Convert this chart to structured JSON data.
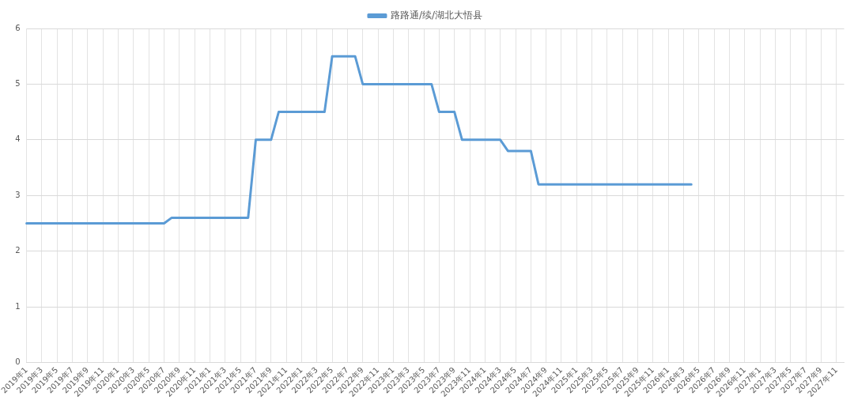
{
  "chart_data": {
    "type": "line",
    "categories": [
      "2019年1",
      null,
      "2019年3",
      null,
      "2019年5",
      null,
      "2019年7",
      null,
      "2019年9",
      null,
      "2019年11",
      null,
      "2020年1",
      null,
      "2020年3",
      null,
      "2020年5",
      null,
      "2020年7",
      null,
      "2020年9",
      null,
      "2020年11",
      null,
      "2021年1",
      null,
      "2021年3",
      null,
      "2021年5",
      null,
      "2021年7",
      null,
      "2021年9",
      null,
      "2021年11",
      null,
      "2022年1",
      null,
      "2022年3",
      null,
      "2022年5",
      null,
      "2022年7",
      null,
      "2022年9",
      null,
      "2022年11",
      null,
      "2023年1",
      null,
      "2023年3",
      null,
      "2023年5",
      null,
      "2023年7",
      null,
      "2023年9",
      null,
      "2023年11",
      null,
      "2024年1",
      null,
      "2024年3",
      null,
      "2024年5",
      null,
      "2024年7",
      null,
      "2024年9",
      null,
      "2024年11",
      null,
      "2025年1",
      null,
      "2025年3",
      null,
      "2025年5",
      null,
      "2025年7",
      null,
      "2025年9",
      null,
      "2025年11",
      null,
      "2026年1",
      null,
      "2026年3",
      null,
      "2026年5",
      null,
      "2026年7",
      null,
      "2026年9",
      null,
      "2026年11",
      null,
      "2027年1",
      null,
      "2027年3",
      null,
      "2027年5",
      null,
      "2027年7",
      null,
      "2027年9",
      null,
      "2027年11",
      null
    ],
    "series": [
      {
        "name": "路路通/续/湖北大悟县",
        "color": "#5b9bd5",
        "values": [
          2.5,
          2.5,
          2.5,
          2.5,
          2.5,
          2.5,
          2.5,
          2.5,
          2.5,
          2.5,
          2.5,
          2.5,
          2.5,
          2.5,
          2.5,
          2.5,
          2.5,
          2.5,
          2.5,
          2.6,
          2.6,
          2.6,
          2.6,
          2.6,
          2.6,
          2.6,
          2.6,
          2.6,
          2.6,
          2.6,
          4.0,
          4.0,
          4.0,
          4.5,
          4.5,
          4.5,
          4.5,
          4.5,
          4.5,
          4.5,
          5.5,
          5.5,
          5.5,
          5.5,
          5.0,
          5.0,
          5.0,
          5.0,
          5.0,
          5.0,
          5.0,
          5.0,
          5.0,
          5.0,
          4.5,
          4.5,
          4.5,
          4.0,
          4.0,
          4.0,
          4.0,
          4.0,
          4.0,
          3.8,
          3.8,
          3.8,
          3.8,
          3.2,
          3.2,
          3.2,
          3.2,
          3.2,
          3.2,
          3.2,
          3.2,
          3.2,
          3.2,
          3.2,
          3.2,
          3.2,
          3.2,
          3.2,
          3.2,
          3.2,
          3.2,
          3.2,
          3.2,
          3.2,
          null,
          null,
          null,
          null,
          null,
          null,
          null,
          null,
          null,
          null,
          null,
          null,
          null,
          null,
          null,
          null,
          null,
          null,
          null,
          null
        ]
      }
    ],
    "ylim": [
      0,
      6
    ],
    "yticks": [
      0,
      1,
      2,
      3,
      4,
      5,
      6
    ],
    "grid": true,
    "legend": "top",
    "marker": "none",
    "line_style": "solid"
  }
}
